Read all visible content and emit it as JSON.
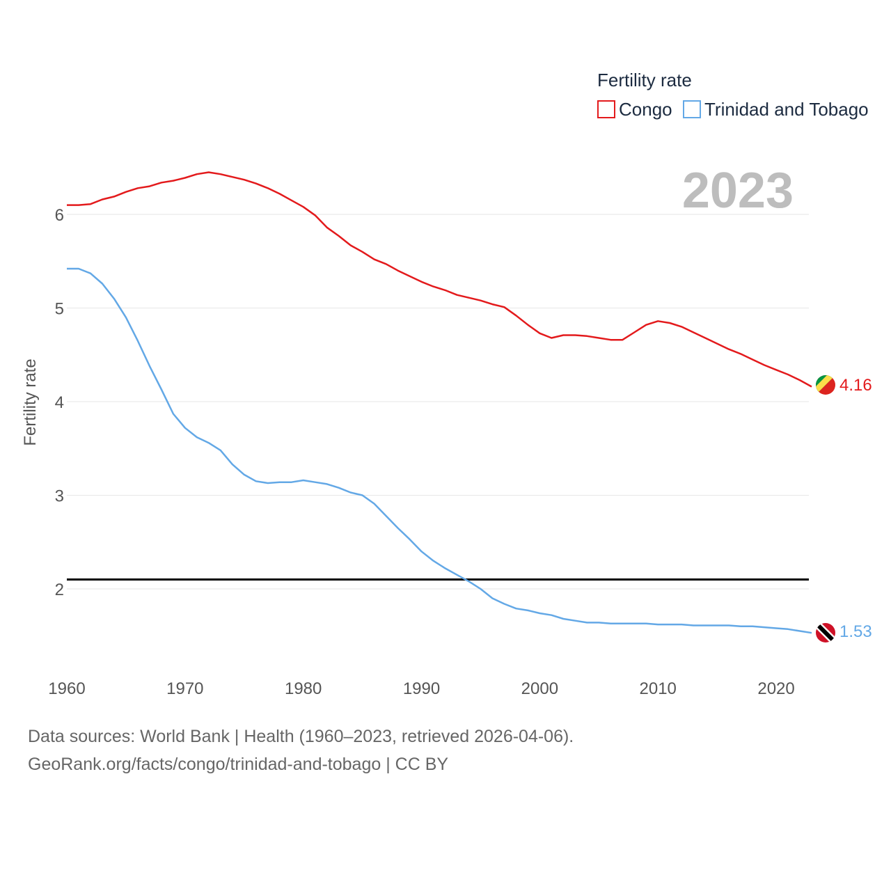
{
  "chart_data": {
    "type": "line",
    "legend_title": "Fertility rate",
    "ylabel": "Fertility rate",
    "year_label": "2023",
    "xlim": [
      1960,
      2023
    ],
    "ylim": [
      1.2,
      6.7
    ],
    "x_ticks": [
      1960,
      1970,
      1980,
      1990,
      2000,
      2010,
      2020
    ],
    "y_ticks": [
      2,
      3,
      4,
      5,
      6
    ],
    "reference_line": 2.1,
    "legend_position": "top-right",
    "series": [
      {
        "name": "Congo",
        "color": "#e31a1c",
        "end_label": "4.16",
        "end_value": 4.16,
        "flag": "congo-flag",
        "values": [
          6.1,
          6.1,
          6.11,
          6.16,
          6.19,
          6.24,
          6.28,
          6.3,
          6.34,
          6.36,
          6.39,
          6.43,
          6.45,
          6.43,
          6.4,
          6.37,
          6.33,
          6.28,
          6.22,
          6.15,
          6.08,
          5.99,
          5.86,
          5.77,
          5.67,
          5.6,
          5.52,
          5.47,
          5.4,
          5.34,
          5.28,
          5.23,
          5.19,
          5.14,
          5.11,
          5.08,
          5.04,
          5.01,
          4.92,
          4.82,
          4.73,
          4.68,
          4.71,
          4.71,
          4.7,
          4.68,
          4.66,
          4.66,
          4.74,
          4.82,
          4.86,
          4.84,
          4.8,
          4.74,
          4.68,
          4.62,
          4.56,
          4.51,
          4.45,
          4.39,
          4.34,
          4.29,
          4.23,
          4.16
        ]
      },
      {
        "name": "Trinidad and Tobago",
        "color": "#63a8e6",
        "end_label": "1.53",
        "end_value": 1.53,
        "flag": "trinidad-flag",
        "values": [
          5.42,
          5.42,
          5.37,
          5.26,
          5.1,
          4.9,
          4.65,
          4.38,
          4.13,
          3.87,
          3.72,
          3.62,
          3.56,
          3.48,
          3.33,
          3.22,
          3.15,
          3.13,
          3.14,
          3.14,
          3.16,
          3.14,
          3.12,
          3.08,
          3.03,
          3.0,
          2.91,
          2.78,
          2.65,
          2.53,
          2.4,
          2.3,
          2.22,
          2.15,
          2.08,
          2.0,
          1.9,
          1.84,
          1.79,
          1.77,
          1.74,
          1.72,
          1.68,
          1.66,
          1.64,
          1.64,
          1.63,
          1.63,
          1.63,
          1.63,
          1.62,
          1.62,
          1.62,
          1.61,
          1.61,
          1.61,
          1.61,
          1.6,
          1.6,
          1.59,
          1.58,
          1.57,
          1.55,
          1.53
        ]
      }
    ]
  },
  "footer": {
    "line1": "Data sources: World Bank | Health (1960–2023, retrieved 2026-04-06).",
    "line2": "GeoRank.org/facts/congo/trinidad-and-tobago | CC BY"
  }
}
